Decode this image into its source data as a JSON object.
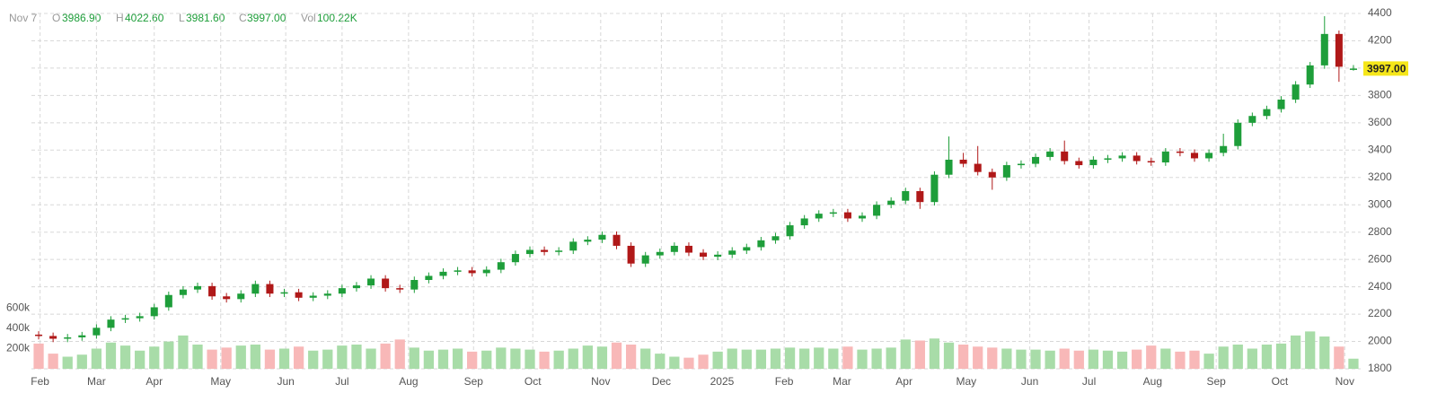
{
  "header": {
    "date": "Nov 7",
    "open_label": "O",
    "open": "3986.90",
    "high_label": "H",
    "high": "4022.60",
    "low_label": "L",
    "low": "3981.60",
    "close_label": "C",
    "close": "3997.00",
    "volume_label": "Vol",
    "volume": "100.22K"
  },
  "chart_data": {
    "type": "candlestick",
    "x": [
      0,
      1,
      2,
      3,
      4,
      5,
      6,
      7,
      8,
      9,
      10,
      11,
      12,
      13,
      14,
      15,
      16,
      17,
      18,
      19,
      20,
      21,
      22,
      23,
      24,
      25,
      26,
      27,
      28,
      29,
      30,
      31,
      32,
      33,
      34,
      35,
      36,
      37,
      38,
      39,
      40,
      41,
      42,
      43,
      44,
      45,
      46,
      47,
      48,
      49,
      50,
      51,
      52,
      53,
      54,
      55,
      56,
      57,
      58,
      59,
      60,
      61,
      62,
      63,
      64,
      65,
      66,
      67,
      68,
      69,
      70,
      71,
      72,
      73,
      74,
      75,
      76,
      77,
      78,
      79,
      80,
      81,
      82,
      83,
      84,
      85,
      86,
      87,
      88,
      89,
      90,
      91
    ],
    "open": [
      2050,
      2040,
      2020,
      2030,
      2045,
      2100,
      2160,
      2170,
      2185,
      2250,
      2340,
      2380,
      2405,
      2330,
      2310,
      2350,
      2420,
      2350,
      2360,
      2320,
      2335,
      2350,
      2390,
      2410,
      2460,
      2390,
      2380,
      2450,
      2480,
      2510,
      2520,
      2500,
      2525,
      2580,
      2640,
      2670,
      2655,
      2665,
      2730,
      2745,
      2780,
      2700,
      2570,
      2630,
      2655,
      2700,
      2650,
      2620,
      2635,
      2665,
      2690,
      2740,
      2770,
      2850,
      2900,
      2935,
      2945,
      2900,
      2920,
      3000,
      3030,
      3100,
      3020,
      3220,
      3330,
      3300,
      3240,
      3200,
      3290,
      3300,
      3350,
      3390,
      3320,
      3290,
      3330,
      3340,
      3360,
      3320,
      3310,
      3390,
      3380,
      3340,
      3380,
      3430,
      3600,
      3650,
      3700,
      3770,
      3880,
      4020,
      4250,
      3986.9
    ],
    "high": [
      2075,
      2065,
      2055,
      2070,
      2125,
      2185,
      2195,
      2210,
      2275,
      2365,
      2405,
      2430,
      2430,
      2355,
      2375,
      2445,
      2445,
      2385,
      2385,
      2360,
      2375,
      2415,
      2435,
      2485,
      2485,
      2415,
      2475,
      2505,
      2535,
      2545,
      2545,
      2550,
      2605,
      2665,
      2695,
      2695,
      2690,
      2755,
      2770,
      2805,
      2805,
      2725,
      2655,
      2680,
      2725,
      2725,
      2675,
      2660,
      2690,
      2715,
      2765,
      2795,
      2875,
      2925,
      2960,
      2970,
      2970,
      2945,
      3025,
      3055,
      3125,
      3125,
      3245,
      3500,
      3380,
      3430,
      3265,
      3315,
      3325,
      3375,
      3415,
      3470,
      3345,
      3355,
      3365,
      3385,
      3385,
      3345,
      3415,
      3415,
      3405,
      3405,
      3520,
      3625,
      3675,
      3725,
      3795,
      3905,
      4045,
      4380,
      4275,
      4022.6
    ],
    "low": [
      2015,
      1995,
      1995,
      2005,
      2020,
      2075,
      2135,
      2145,
      2160,
      2225,
      2315,
      2355,
      2305,
      2285,
      2285,
      2325,
      2325,
      2325,
      2295,
      2295,
      2310,
      2325,
      2365,
      2385,
      2365,
      2355,
      2355,
      2425,
      2455,
      2485,
      2475,
      2475,
      2500,
      2555,
      2615,
      2630,
      2630,
      2640,
      2705,
      2720,
      2675,
      2545,
      2545,
      2605,
      2630,
      2625,
      2595,
      2595,
      2610,
      2640,
      2665,
      2715,
      2745,
      2825,
      2875,
      2910,
      2875,
      2875,
      2895,
      2975,
      3005,
      2970,
      2995,
      3195,
      3275,
      3215,
      3110,
      3175,
      3265,
      3275,
      3325,
      3295,
      3265,
      3265,
      3305,
      3315,
      3295,
      3285,
      3285,
      3355,
      3315,
      3315,
      3355,
      3405,
      3575,
      3625,
      3675,
      3745,
      3855,
      3995,
      3900,
      3981.6
    ],
    "close": [
      2040,
      2020,
      2030,
      2045,
      2100,
      2160,
      2170,
      2185,
      2250,
      2340,
      2380,
      2405,
      2330,
      2310,
      2350,
      2420,
      2350,
      2360,
      2320,
      2335,
      2350,
      2390,
      2410,
      2460,
      2390,
      2380,
      2450,
      2480,
      2510,
      2520,
      2500,
      2525,
      2580,
      2640,
      2670,
      2655,
      2665,
      2730,
      2745,
      2780,
      2700,
      2570,
      2630,
      2655,
      2700,
      2650,
      2620,
      2635,
      2665,
      2690,
      2740,
      2770,
      2850,
      2900,
      2935,
      2945,
      2900,
      2920,
      3000,
      3030,
      3100,
      3020,
      3220,
      3330,
      3300,
      3240,
      3200,
      3290,
      3300,
      3350,
      3390,
      3320,
      3290,
      3330,
      3340,
      3360,
      3320,
      3310,
      3390,
      3380,
      3340,
      3380,
      3430,
      3600,
      3650,
      3700,
      3770,
      3880,
      4020,
      4250,
      4010,
      3997
    ],
    "volume": [
      250000,
      150000,
      120000,
      140000,
      200000,
      260000,
      230000,
      180000,
      220000,
      270000,
      330000,
      240000,
      190000,
      210000,
      230000,
      240000,
      190000,
      200000,
      220000,
      180000,
      190000,
      230000,
      240000,
      200000,
      250000,
      290000,
      210000,
      180000,
      190000,
      200000,
      170000,
      180000,
      210000,
      200000,
      190000,
      170000,
      180000,
      200000,
      230000,
      220000,
      260000,
      240000,
      200000,
      150000,
      120000,
      110000,
      140000,
      170000,
      200000,
      190000,
      190000,
      200000,
      210000,
      200000,
      210000,
      200000,
      220000,
      190000,
      200000,
      210000,
      290000,
      280000,
      300000,
      260000,
      240000,
      220000,
      210000,
      200000,
      190000,
      190000,
      180000,
      200000,
      180000,
      190000,
      180000,
      170000,
      190000,
      230000,
      200000,
      170000,
      180000,
      150000,
      220000,
      240000,
      200000,
      240000,
      250000,
      330000,
      370000,
      320000,
      220000,
      100220
    ],
    "up_color": "#1e9e3a",
    "down_color": "#b01818",
    "volume_up_color": "#a8dca8",
    "volume_down_color": "#f8b8b8",
    "xlim": [
      -0.5,
      91.5
    ],
    "xticks": [
      {
        "value": 0.1,
        "label": "Feb"
      },
      {
        "value": 4.0,
        "label": "Mar"
      },
      {
        "value": 8.0,
        "label": "Apr"
      },
      {
        "value": 12.6,
        "label": "May"
      },
      {
        "value": 17.1,
        "label": "Jun"
      },
      {
        "value": 21.0,
        "label": "Jul"
      },
      {
        "value": 25.6,
        "label": "Aug"
      },
      {
        "value": 30.1,
        "label": "Sep"
      },
      {
        "value": 34.2,
        "label": "Oct"
      },
      {
        "value": 38.9,
        "label": "Nov"
      },
      {
        "value": 43.1,
        "label": "Dec"
      },
      {
        "value": 47.3,
        "label": "2025"
      },
      {
        "value": 51.6,
        "label": "Feb"
      },
      {
        "value": 55.6,
        "label": "Mar"
      },
      {
        "value": 59.9,
        "label": "Apr"
      },
      {
        "value": 64.2,
        "label": "May"
      },
      {
        "value": 68.6,
        "label": "Jun"
      },
      {
        "value": 72.7,
        "label": "Jul"
      },
      {
        "value": 77.1,
        "label": "Aug"
      },
      {
        "value": 81.5,
        "label": "Sep"
      },
      {
        "value": 85.9,
        "label": "Oct"
      },
      {
        "value": 90.4,
        "label": "Nov"
      }
    ],
    "ylim": [
      1800,
      4400
    ],
    "yticks": [
      1800,
      2000,
      2200,
      2400,
      2600,
      2800,
      3000,
      3200,
      3400,
      3600,
      3800,
      4000,
      4200,
      4400
    ],
    "vlim": [
      0,
      3520000
    ],
    "vticks": [
      {
        "value": 200000,
        "label": "200k"
      },
      {
        "value": 400000,
        "label": "400k"
      },
      {
        "value": 600000,
        "label": "600k"
      }
    ],
    "last_price_label": "3997.00",
    "grid": true
  }
}
